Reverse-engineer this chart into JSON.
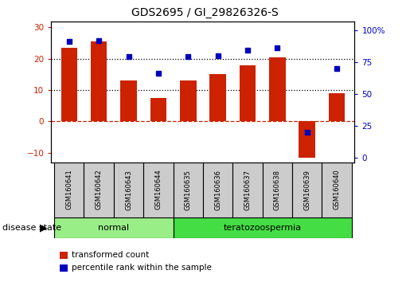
{
  "title": "GDS2695 / GI_29826326-S",
  "samples": [
    "GSM160641",
    "GSM160642",
    "GSM160643",
    "GSM160644",
    "GSM160635",
    "GSM160636",
    "GSM160637",
    "GSM160638",
    "GSM160639",
    "GSM160640"
  ],
  "bar_values": [
    23.5,
    25.5,
    13.0,
    7.5,
    13.0,
    15.0,
    18.0,
    20.5,
    -11.5,
    9.0
  ],
  "dot_values": [
    91,
    92,
    79,
    66,
    79,
    80,
    84,
    86,
    20,
    70
  ],
  "bar_color": "#CC2200",
  "dot_color": "#0000BB",
  "ylim_left": [
    -13,
    32
  ],
  "ylim_right": [
    -3.5,
    107
  ],
  "yticks_left": [
    -10,
    0,
    10,
    20,
    30
  ],
  "yticks_right": [
    0,
    25,
    50,
    75,
    100
  ],
  "ytick_labels_right": [
    "0",
    "25",
    "50",
    "75",
    "100%"
  ],
  "hline_dotted_values": [
    10,
    20
  ],
  "hline_red_value": 0,
  "groups": [
    {
      "label": "normal",
      "start": 0,
      "end": 3,
      "color": "#99EE88"
    },
    {
      "label": "teratozoospermia",
      "start": 4,
      "end": 9,
      "color": "#44DD44"
    }
  ],
  "disease_state_label": "disease state",
  "legend_items": [
    {
      "label": "transformed count",
      "color": "#CC2200"
    },
    {
      "label": "percentile rank within the sample",
      "color": "#0000BB"
    }
  ],
  "sample_bg_color": "#CCCCCC",
  "tick_label_color_left": "#CC2200",
  "tick_label_color_right": "#0000BB",
  "bar_width": 0.55
}
